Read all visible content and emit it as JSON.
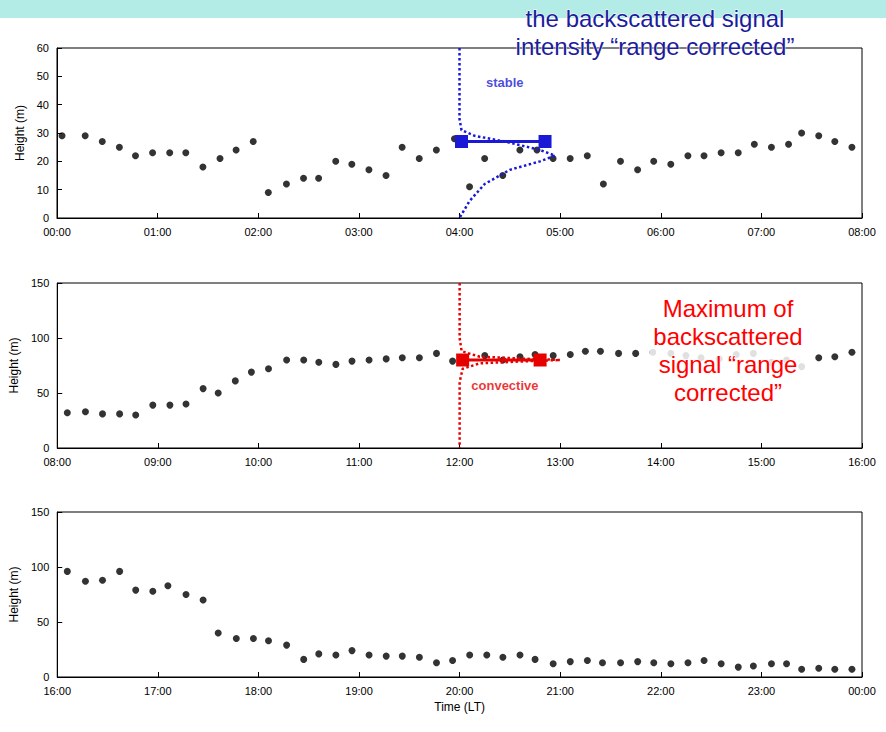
{
  "chart_data": [
    {
      "type": "scatter",
      "ylabel": "Height (m)",
      "xlim": [
        0,
        8
      ],
      "xticks": [
        {
          "value": 0,
          "label": "00:00"
        },
        {
          "value": 1,
          "label": "01:00"
        },
        {
          "value": 2,
          "label": "02:00"
        },
        {
          "value": 3,
          "label": "03:00"
        },
        {
          "value": 4,
          "label": "04:00"
        },
        {
          "value": 5,
          "label": "05:00"
        },
        {
          "value": 6,
          "label": "06:00"
        },
        {
          "value": 7,
          "label": "07:00"
        },
        {
          "value": 8,
          "label": "08:00"
        }
      ],
      "ylim": [
        0,
        60
      ],
      "yticks": [
        0,
        10,
        20,
        30,
        40,
        50,
        60
      ],
      "series": [
        {
          "color": "#000000",
          "marker": "circle",
          "x": [
            0.05,
            0.28,
            0.45,
            0.62,
            0.78,
            0.95,
            1.12,
            1.28,
            1.45,
            1.62,
            1.78,
            1.95,
            2.1,
            2.28,
            2.45,
            2.6,
            2.77,
            2.93,
            3.1,
            3.27,
            3.43,
            3.6,
            3.77,
            3.95,
            4.1,
            4.25,
            4.43,
            4.6,
            4.77,
            4.93,
            5.1,
            5.27,
            5.43,
            5.6,
            5.77,
            5.93,
            6.1,
            6.27,
            6.43,
            6.6,
            6.77,
            6.93,
            7.1,
            7.27,
            7.4,
            7.57,
            7.73,
            7.9
          ],
          "values": [
            29,
            29,
            27,
            25,
            22,
            23,
            23,
            23,
            18,
            21,
            24,
            27,
            9,
            12,
            14,
            14,
            20,
            19,
            17,
            15,
            25,
            21,
            24,
            28,
            11,
            21,
            15,
            24,
            24,
            21,
            21,
            22,
            12,
            20,
            17,
            20,
            19,
            22,
            22,
            23,
            23,
            26,
            25,
            26,
            30,
            29,
            27,
            25
          ]
        }
      ],
      "profile": {
        "color": "#1a1ad6",
        "line_style": "dotted",
        "x": [
          4.0,
          4.0,
          4.02,
          4.15,
          4.45,
          4.8,
          4.95,
          4.8,
          4.5,
          4.25,
          4.1,
          4.0
        ],
        "y": [
          60,
          35,
          31,
          29,
          27,
          24,
          22,
          20,
          17,
          12,
          6,
          0
        ],
        "arrow": {
          "x": [
            4.85,
            4.02
          ],
          "y": [
            27,
            27
          ]
        },
        "annotation": {
          "text": "stable",
          "x": 4.45,
          "y": 48
        }
      }
    },
    {
      "type": "scatter",
      "ylabel": "Height (m)",
      "xlim": [
        8,
        16
      ],
      "xticks": [
        {
          "value": 8,
          "label": "08:00"
        },
        {
          "value": 9,
          "label": "09:00"
        },
        {
          "value": 10,
          "label": "10:00"
        },
        {
          "value": 11,
          "label": "11:00"
        },
        {
          "value": 12,
          "label": "12:00"
        },
        {
          "value": 13,
          "label": "13:00"
        },
        {
          "value": 14,
          "label": "14:00"
        },
        {
          "value": 15,
          "label": "15:00"
        },
        {
          "value": 16,
          "label": "16:00"
        }
      ],
      "ylim": [
        0,
        150
      ],
      "yticks": [
        0,
        50,
        100,
        150
      ],
      "series": [
        {
          "color": "#000000",
          "marker": "circle",
          "x": [
            8.1,
            8.28,
            8.45,
            8.62,
            8.78,
            8.95,
            9.12,
            9.28,
            9.45,
            9.6,
            9.77,
            9.93,
            10.1,
            10.28,
            10.45,
            10.6,
            10.77,
            10.93,
            11.1,
            11.27,
            11.43,
            11.6,
            11.77,
            11.93,
            12.25,
            12.43,
            12.6,
            12.75,
            12.93,
            13.1,
            13.25,
            13.4,
            13.58,
            13.75,
            13.92,
            14.1,
            14.25,
            14.4,
            14.58,
            14.75,
            14.92,
            15.1,
            15.25,
            15.4,
            15.57,
            15.73,
            15.9
          ],
          "values": [
            32,
            33,
            31,
            31,
            30,
            39,
            39,
            40,
            54,
            50,
            61,
            69,
            72,
            80,
            80,
            78,
            76,
            79,
            80,
            81,
            82,
            82,
            86,
            79,
            84,
            80,
            83,
            85,
            84,
            85,
            88,
            88,
            86,
            86,
            87,
            86,
            84,
            82,
            81,
            85,
            86,
            78,
            80,
            74,
            82,
            83,
            87
          ]
        }
      ],
      "profile": {
        "color": "#e60000",
        "line_style": "dotted",
        "x": [
          12.0,
          12.0,
          12.02,
          12.2,
          12.7,
          13.0,
          12.7,
          12.2,
          12.03,
          12.0,
          12.0
        ],
        "y": [
          150,
          100,
          88,
          83,
          81,
          80,
          79,
          77,
          72,
          60,
          0
        ],
        "arrow": {
          "x": [
            12.8,
            12.03
          ],
          "y": [
            80,
            80
          ]
        },
        "annotation": {
          "text": "convective",
          "x": 12.45,
          "y": 57
        }
      }
    },
    {
      "type": "scatter",
      "ylabel": "Height (m)",
      "xlabel": "Time (LT)",
      "xlim": [
        16,
        24
      ],
      "xticks": [
        {
          "value": 16,
          "label": "16:00"
        },
        {
          "value": 17,
          "label": "17:00"
        },
        {
          "value": 18,
          "label": "18:00"
        },
        {
          "value": 19,
          "label": "19:00"
        },
        {
          "value": 20,
          "label": "20:00"
        },
        {
          "value": 21,
          "label": "21:00"
        },
        {
          "value": 22,
          "label": "22:00"
        },
        {
          "value": 23,
          "label": "23:00"
        },
        {
          "value": 24,
          "label": "00:00"
        }
      ],
      "ylim": [
        0,
        150
      ],
      "yticks": [
        0,
        50,
        100,
        150
      ],
      "series": [
        {
          "color": "#000000",
          "marker": "circle",
          "x": [
            16.1,
            16.28,
            16.45,
            16.62,
            16.78,
            16.95,
            17.1,
            17.28,
            17.45,
            17.6,
            17.78,
            17.95,
            18.1,
            18.28,
            18.45,
            18.6,
            18.77,
            18.93,
            19.1,
            19.27,
            19.43,
            19.6,
            19.77,
            19.93,
            20.1,
            20.27,
            20.43,
            20.6,
            20.75,
            20.93,
            21.1,
            21.27,
            21.42,
            21.6,
            21.77,
            21.93,
            22.1,
            22.27,
            22.43,
            22.6,
            22.77,
            22.92,
            23.1,
            23.25,
            23.4,
            23.57,
            23.73,
            23.9
          ],
          "values": [
            96,
            87,
            88,
            96,
            79,
            78,
            83,
            75,
            70,
            40,
            35,
            35,
            33,
            29,
            16,
            21,
            20,
            24,
            20,
            19,
            19,
            18,
            13,
            15,
            20,
            20,
            18,
            20,
            16,
            12,
            14,
            15,
            13,
            13,
            14,
            13,
            12,
            13,
            15,
            12,
            9,
            10,
            12,
            12,
            7,
            8,
            7,
            7
          ]
        }
      ]
    }
  ],
  "annotations": [
    {
      "text": "the backscattered signal intensity “range corrected”",
      "color": "#1c1c9c"
    },
    {
      "text": "Maximum of backscattered signal “range corrected”",
      "color": "#ff0000"
    }
  ]
}
